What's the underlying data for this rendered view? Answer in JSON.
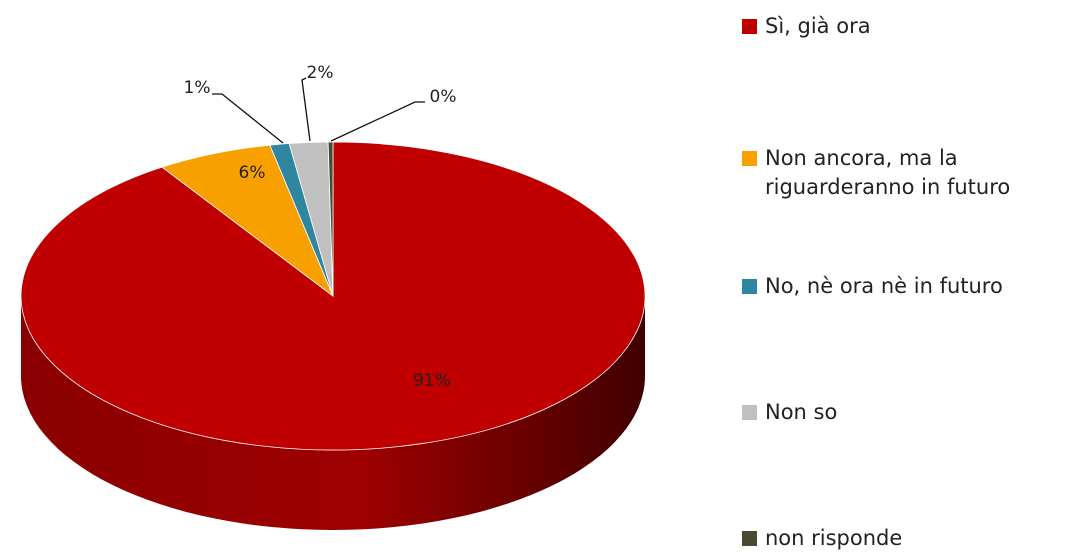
{
  "chart_data": {
    "type": "pie",
    "title": "",
    "style": "3d",
    "categories": [
      "Sì, già ora",
      "Non ancora, ma la riguarderanno in futuro",
      "No, nè ora nè in futuro",
      "Non so",
      "non risponde"
    ],
    "values": [
      91,
      6,
      1,
      2,
      0
    ],
    "value_labels": [
      "91%",
      "6%",
      "1%",
      "2%",
      "0%"
    ],
    "colors": [
      "#C00000",
      "#F7A000",
      "#2E86A0",
      "#C0C0C0",
      "#4A4A32"
    ],
    "legend_position": "right"
  }
}
